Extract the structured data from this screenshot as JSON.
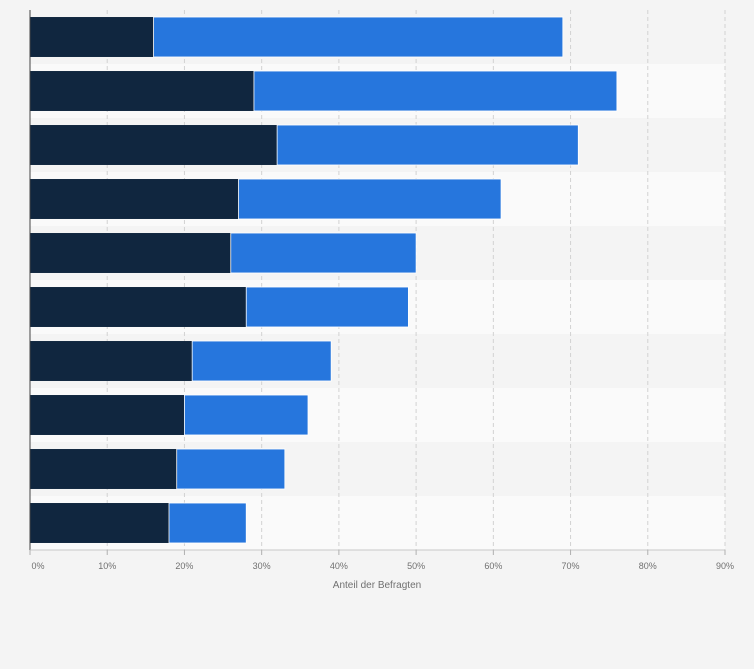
{
  "chart_data": {
    "type": "bar",
    "orientation": "horizontal",
    "stacked": true,
    "categories": [
      "",
      "",
      "",
      "",
      "",
      "",
      "",
      "",
      "",
      ""
    ],
    "series": [
      {
        "color": "#10263f",
        "values": [
          16,
          29,
          32,
          27,
          26,
          28,
          21,
          20,
          19,
          18
        ]
      },
      {
        "color": "#2676dd",
        "values": [
          53,
          47,
          39,
          34,
          24,
          21,
          18,
          16,
          14,
          10
        ]
      }
    ],
    "x_ticks": [
      "0%",
      "10%",
      "20%",
      "30%",
      "40%",
      "50%",
      "60%",
      "70%",
      "80%",
      "90%"
    ],
    "xlim": [
      0,
      90
    ],
    "xlabel": "Anteil der Befragten",
    "grid": true,
    "legend": "none"
  }
}
